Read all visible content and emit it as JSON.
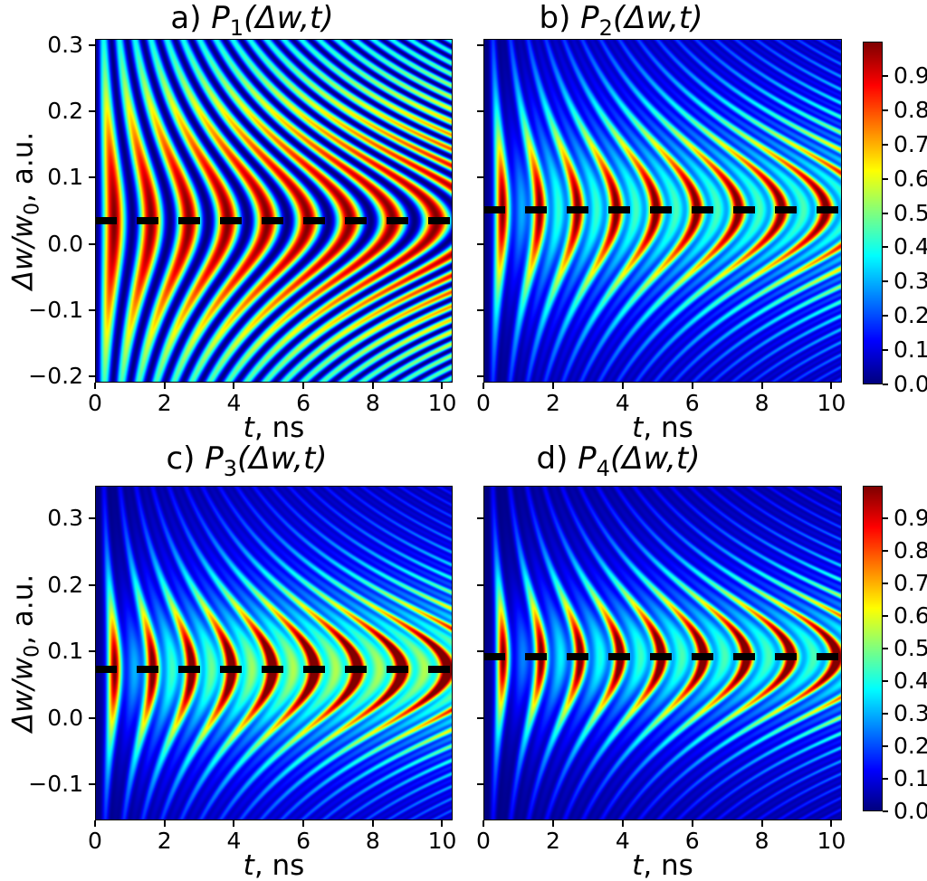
{
  "chart_data": {
    "type": "heatmap",
    "colormap": "jet",
    "grid": "off",
    "xlabel": {
      "var": "t",
      "rest": ", ns"
    },
    "ylabel": {
      "var": "Δw/w",
      "sub": "0",
      "rest": ", a.u."
    },
    "colorbar": {
      "vmin": 0.0,
      "vmax": 1.0,
      "tick_labels": [
        "0.9",
        "0.8",
        "0.7",
        "0.6",
        "0.5",
        "0.4",
        "0.3",
        "0.2",
        "0.1",
        "0.0"
      ],
      "tick_values": [
        0.9,
        0.8,
        0.7,
        0.6,
        0.5,
        0.4,
        0.3,
        0.2,
        0.1,
        0.0
      ],
      "position": "right"
    },
    "panels": [
      {
        "key": "a",
        "title": {
          "prefix": "a) ",
          "func": "P",
          "sub": "1",
          "args": "(Δw,t)"
        },
        "x_range": [
          0,
          10.3
        ],
        "y_range": [
          -0.21,
          0.31
        ],
        "x_tick_labels": [
          "0",
          "2",
          "4",
          "6",
          "8",
          "10"
        ],
        "x_tick_values": [
          0,
          2,
          4,
          6,
          8,
          10
        ],
        "y_tick_labels": [
          "0.3",
          "0.2",
          "0.1",
          "0.0",
          "−0.1",
          "−0.2"
        ],
        "y_tick_values": [
          0.3,
          0.2,
          0.1,
          0.0,
          -0.1,
          -0.2
        ],
        "dashed_line_y": 0.035,
        "pattern_model": {
          "period_ns": 1.05,
          "chirp": 0.2,
          "freq_width": 0.13,
          "amp_width": 0.22,
          "sharpness": 1.0,
          "secondary": 0.0,
          "haze": 0.0
        }
      },
      {
        "key": "b",
        "title": {
          "prefix": "b) ",
          "func": "P",
          "sub": "2",
          "args": "(Δw,t)"
        },
        "x_range": [
          0,
          10.3
        ],
        "y_range": [
          -0.21,
          0.31
        ],
        "x_tick_labels": [
          "0",
          "2",
          "4",
          "6",
          "8",
          "10"
        ],
        "x_tick_values": [
          0,
          2,
          4,
          6,
          8,
          10
        ],
        "y_tick_labels": [],
        "y_tick_values": [
          0.3,
          0.2,
          0.1,
          0.0,
          -0.1,
          -0.2
        ],
        "dashed_line_y": 0.052,
        "pattern_model": {
          "period_ns": 1.05,
          "chirp": 0.2,
          "freq_width": 0.14,
          "amp_width": 0.12,
          "sharpness": 2.5,
          "secondary": 0.4,
          "haze": 0.05
        }
      },
      {
        "key": "c",
        "title": {
          "prefix": "c) ",
          "func": "P",
          "sub": "3",
          "args": "(Δw,t)"
        },
        "x_range": [
          0,
          10.3
        ],
        "y_range": [
          -0.154,
          0.349
        ],
        "x_tick_labels": [
          "0",
          "2",
          "4",
          "6",
          "8",
          "10"
        ],
        "x_tick_values": [
          0,
          2,
          4,
          6,
          8,
          10
        ],
        "y_tick_labels": [
          "0.3",
          "0.2",
          "0.1",
          "0.0",
          "−0.1"
        ],
        "y_tick_values": [
          0.3,
          0.2,
          0.1,
          0.0,
          -0.1
        ],
        "dashed_line_y": 0.073,
        "pattern_model": {
          "period_ns": 1.08,
          "chirp": 0.2,
          "freq_width": 0.13,
          "amp_width": 0.1,
          "sharpness": 3.0,
          "secondary": 0.35,
          "haze": 0.2
        }
      },
      {
        "key": "d",
        "title": {
          "prefix": "d) ",
          "func": "P",
          "sub": "4",
          "args": "(Δw,t)"
        },
        "x_range": [
          0,
          10.3
        ],
        "y_range": [
          -0.154,
          0.349
        ],
        "x_tick_labels": [
          "0",
          "2",
          "4",
          "6",
          "8",
          "10"
        ],
        "x_tick_values": [
          0,
          2,
          4,
          6,
          8,
          10
        ],
        "y_tick_labels": [],
        "y_tick_values": [
          0.3,
          0.2,
          0.1,
          0.0,
          -0.1
        ],
        "dashed_line_y": 0.092,
        "pattern_model": {
          "period_ns": 1.08,
          "chirp": 0.2,
          "freq_width": 0.13,
          "amp_width": 0.09,
          "sharpness": 3.5,
          "secondary": 0.3,
          "haze": 0.15
        }
      }
    ]
  }
}
